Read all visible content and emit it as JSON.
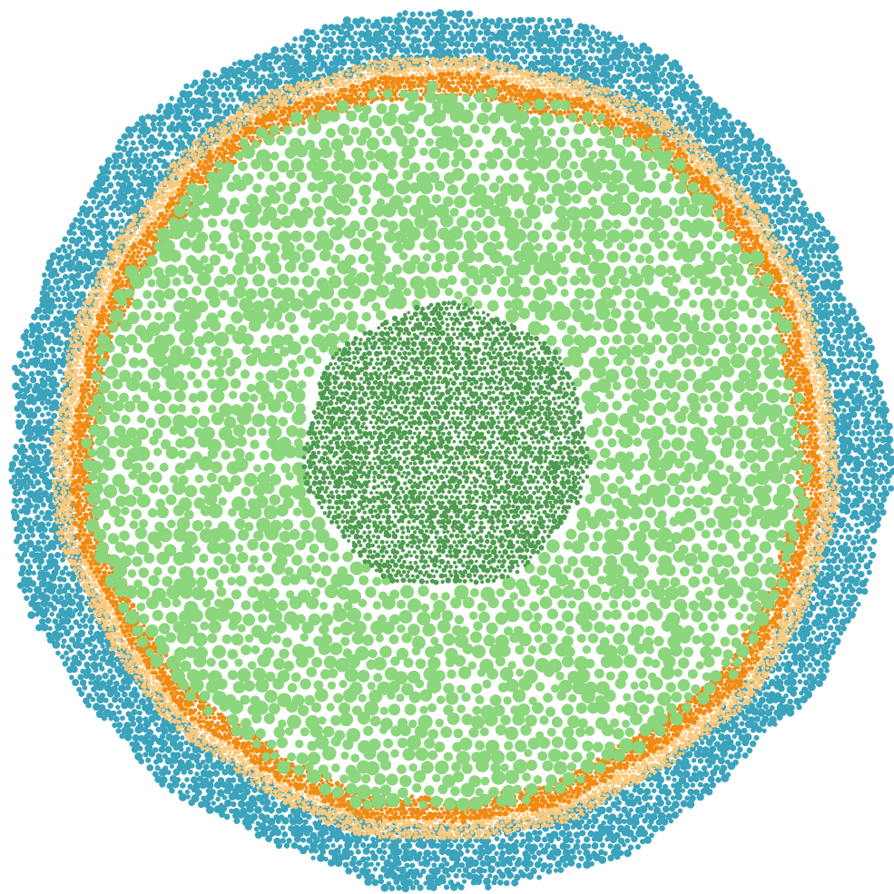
{
  "diagram": {
    "type": "packed-circles",
    "title": "",
    "rings": [
      {
        "name": "outer-ring",
        "color": "#3ba3bc"
      },
      {
        "name": "pale-orange-band",
        "color": "#fdc97a"
      },
      {
        "name": "orange-band",
        "color": "#f08a12"
      },
      {
        "name": "light-green-field",
        "color": "#8cd67e"
      },
      {
        "name": "dark-green-core",
        "color": "#4e9c4f"
      }
    ]
  }
}
